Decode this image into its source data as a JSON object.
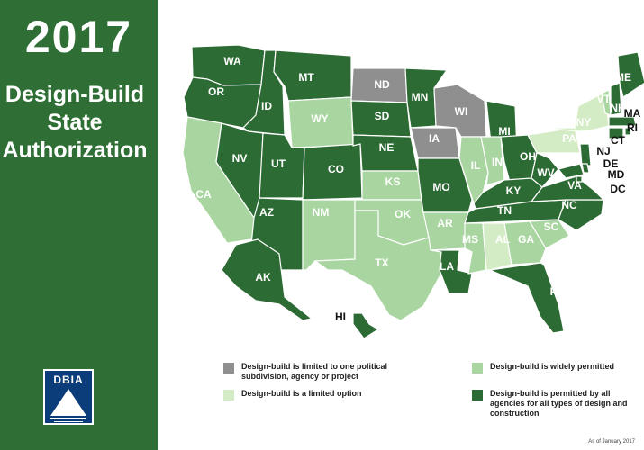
{
  "header": {
    "year": "2017",
    "title_lines": [
      "Design-Build",
      "State",
      "Authorization"
    ]
  },
  "logo": {
    "text": "DBIA"
  },
  "colors": {
    "sidebar": "#2f6f36",
    "all_agencies": "#2d6b34",
    "widely_permitted": "#a9d6a0",
    "limited_option": "#d4ecc5",
    "limited_one": "#8f8f8f",
    "border": "#ffffff"
  },
  "legend": {
    "limited_one": "Design-build is limited to one political subdivision, agency or project",
    "limited_option": "Design-build is a limited option",
    "widely_permitted": "Design-build is widely permitted",
    "all_agencies": "Design-build is permitted by all agencies for all types of design and construction"
  },
  "as_of": "As of January 2017",
  "states": [
    {
      "code": "WA",
      "category": "all_agencies"
    },
    {
      "code": "OR",
      "category": "all_agencies"
    },
    {
      "code": "CA",
      "category": "widely_permitted"
    },
    {
      "code": "ID",
      "category": "all_agencies"
    },
    {
      "code": "NV",
      "category": "all_agencies"
    },
    {
      "code": "MT",
      "category": "all_agencies"
    },
    {
      "code": "WY",
      "category": "widely_permitted"
    },
    {
      "code": "UT",
      "category": "all_agencies"
    },
    {
      "code": "CO",
      "category": "all_agencies"
    },
    {
      "code": "AZ",
      "category": "all_agencies"
    },
    {
      "code": "NM",
      "category": "widely_permitted"
    },
    {
      "code": "ND",
      "category": "limited_one"
    },
    {
      "code": "SD",
      "category": "all_agencies"
    },
    {
      "code": "NE",
      "category": "all_agencies"
    },
    {
      "code": "KS",
      "category": "widely_permitted"
    },
    {
      "code": "OK",
      "category": "widely_permitted"
    },
    {
      "code": "TX",
      "category": "widely_permitted"
    },
    {
      "code": "MN",
      "category": "all_agencies"
    },
    {
      "code": "IA",
      "category": "limited_one"
    },
    {
      "code": "MO",
      "category": "all_agencies"
    },
    {
      "code": "AR",
      "category": "widely_permitted"
    },
    {
      "code": "LA",
      "category": "all_agencies"
    },
    {
      "code": "WI",
      "category": "limited_one"
    },
    {
      "code": "IL",
      "category": "widely_permitted"
    },
    {
      "code": "MI",
      "category": "all_agencies"
    },
    {
      "code": "IN",
      "category": "widely_permitted"
    },
    {
      "code": "OH",
      "category": "all_agencies"
    },
    {
      "code": "KY",
      "category": "all_agencies"
    },
    {
      "code": "TN",
      "category": "all_agencies"
    },
    {
      "code": "MS",
      "category": "widely_permitted"
    },
    {
      "code": "AL",
      "category": "limited_option"
    },
    {
      "code": "GA",
      "category": "widely_permitted"
    },
    {
      "code": "FL",
      "category": "all_agencies"
    },
    {
      "code": "SC",
      "category": "widely_permitted"
    },
    {
      "code": "NC",
      "category": "all_agencies"
    },
    {
      "code": "VA",
      "category": "all_agencies"
    },
    {
      "code": "WV",
      "category": "all_agencies"
    },
    {
      "code": "PA",
      "category": "limited_option"
    },
    {
      "code": "NY",
      "category": "limited_option"
    },
    {
      "code": "VT",
      "category": "widely_permitted"
    },
    {
      "code": "NH",
      "category": "all_agencies"
    },
    {
      "code": "ME",
      "category": "all_agencies"
    },
    {
      "code": "MA",
      "category": "all_agencies"
    },
    {
      "code": "RI",
      "category": "all_agencies"
    },
    {
      "code": "CT",
      "category": "all_agencies"
    },
    {
      "code": "NJ",
      "category": "all_agencies"
    },
    {
      "code": "DE",
      "category": "all_agencies"
    },
    {
      "code": "MD",
      "category": "all_agencies"
    },
    {
      "code": "DC",
      "category": "all_agencies"
    },
    {
      "code": "AK",
      "category": "all_agencies"
    },
    {
      "code": "HI",
      "category": "all_agencies"
    }
  ]
}
